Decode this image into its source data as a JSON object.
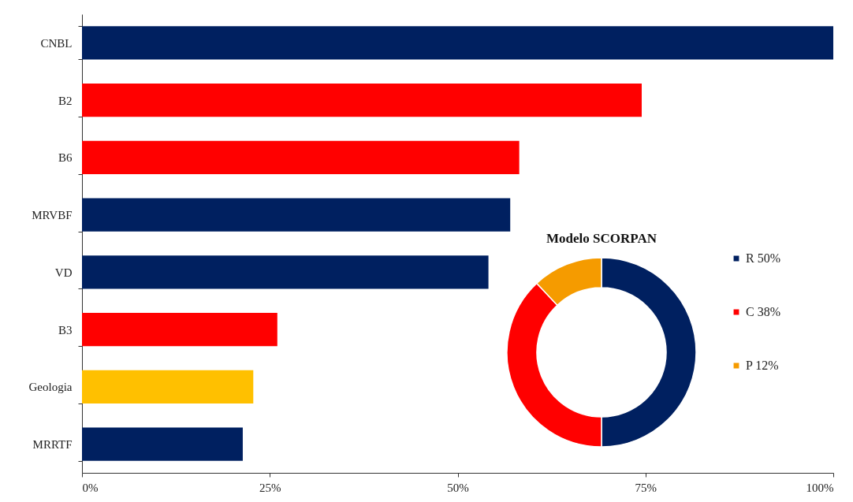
{
  "chart_data": [
    {
      "type": "bar",
      "orientation": "horizontal",
      "categories": [
        "CNBL",
        "B2",
        "B6",
        "MRVBF",
        "VD",
        "B3",
        "Geologia",
        "MRRTF"
      ],
      "values": [
        100,
        74.5,
        58.2,
        57.0,
        54.1,
        26.0,
        22.8,
        21.4
      ],
      "colors": [
        "#002060",
        "#ff0000",
        "#ff0000",
        "#002060",
        "#002060",
        "#ff0000",
        "#ffc000",
        "#002060"
      ],
      "xlim": [
        0,
        100
      ],
      "xticks": [
        {
          "value": 0,
          "label": "0%"
        },
        {
          "value": 25,
          "label": "25%"
        },
        {
          "value": 50,
          "label": "50%"
        },
        {
          "value": 75,
          "label": "75%"
        },
        {
          "value": 100,
          "label": "100%"
        }
      ],
      "grid": false,
      "legend": false
    },
    {
      "type": "donut",
      "title": "Modelo SCORPAN",
      "categories": [
        "R 50%",
        "C 38%",
        "P 12%"
      ],
      "values": [
        50,
        38,
        12
      ],
      "colors": [
        "#002060",
        "#ff0000",
        "#f59b00"
      ],
      "legend": "right"
    }
  ]
}
